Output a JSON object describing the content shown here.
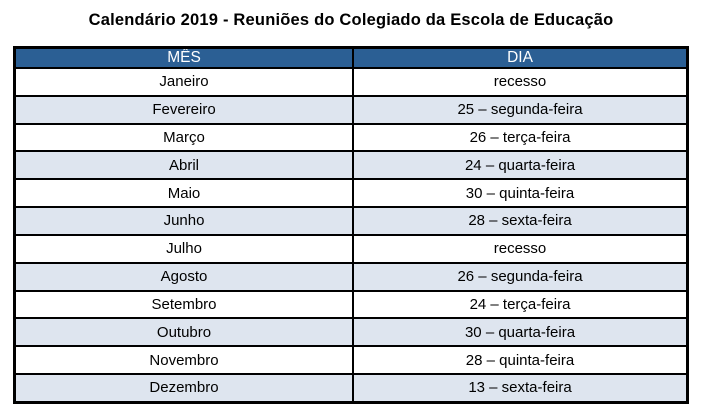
{
  "title": "Calendário 2019 - Reuniões do Colegiado da Escola de Educação",
  "colors": {
    "header_bg": "#2B5F94",
    "header_text": "#FFFFFF",
    "row_bg": "#FFFFFF",
    "row_alt_bg": "#DEE5EF",
    "border": "#000000",
    "title_text": "#000000"
  },
  "table": {
    "headers": [
      "MÊS",
      "DIA"
    ],
    "rows": [
      {
        "mes": "Janeiro",
        "dia": "recesso"
      },
      {
        "mes": "Fevereiro",
        "dia": "25 – segunda-feira"
      },
      {
        "mes": "Março",
        "dia": "26 – terça-feira"
      },
      {
        "mes": "Abril",
        "dia": "24 – quarta-feira"
      },
      {
        "mes": "Maio",
        "dia": "30 – quinta-feira"
      },
      {
        "mes": "Junho",
        "dia": "28 – sexta-feira"
      },
      {
        "mes": "Julho",
        "dia": "recesso"
      },
      {
        "mes": "Agosto",
        "dia": "26 – segunda-feira"
      },
      {
        "mes": "Setembro",
        "dia": "24 – terça-feira"
      },
      {
        "mes": "Outubro",
        "dia": "30 – quarta-feira"
      },
      {
        "mes": "Novembro",
        "dia": "28 – quinta-feira"
      },
      {
        "mes": "Dezembro",
        "dia": "13 – sexta-feira"
      }
    ]
  }
}
